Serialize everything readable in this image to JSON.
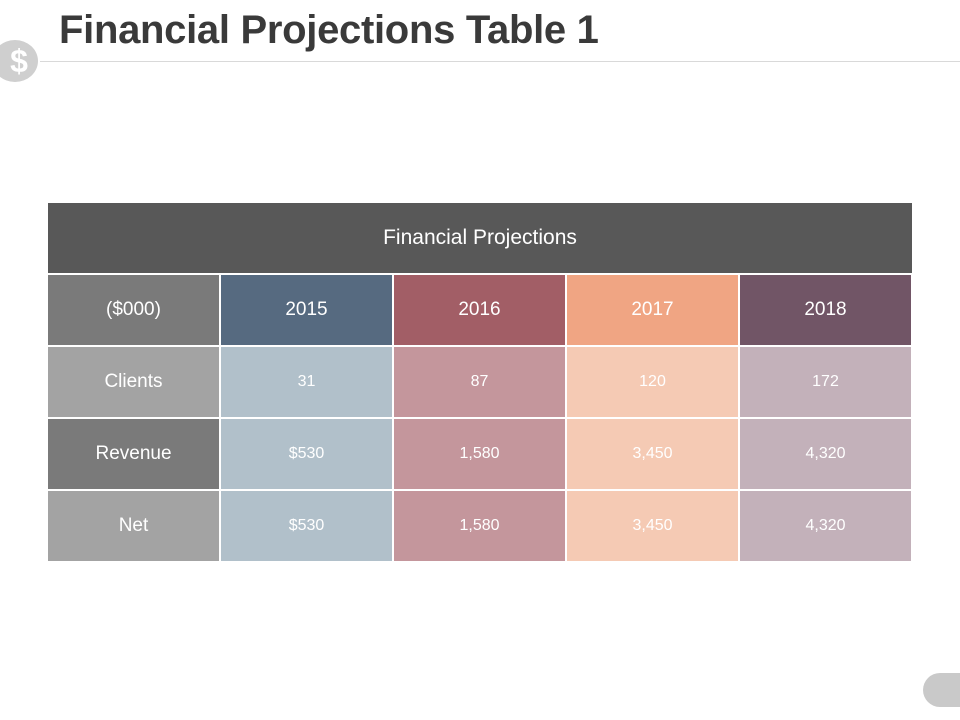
{
  "slide": {
    "title": "Financial Projections Table 1",
    "dollar_glyph": "$"
  },
  "table": {
    "header": "Financial Projections",
    "unit_label": "($000)",
    "years": [
      "2015",
      "2016",
      "2017",
      "2018"
    ],
    "rows": [
      {
        "label": "Clients",
        "values": [
          "31",
          "87",
          "120",
          "172"
        ]
      },
      {
        "label": "Revenue",
        "values": [
          "$530",
          "1,580",
          "3,450",
          "4,320"
        ]
      },
      {
        "label": "Net",
        "values": [
          "$530",
          "1,580",
          "3,450",
          "4,320"
        ]
      }
    ]
  },
  "colors": {
    "header_bg": "#585858",
    "unit_bg": "#7a7a7a",
    "label_bg_light": "#a3a3a3",
    "label_bg_dark": "#7a7a7a",
    "year_bg": [
      "#566a80",
      "#a25e66",
      "#f0a583",
      "#715566"
    ],
    "data_bg": [
      "#b1c0ca",
      "#c4969c",
      "#f5cab4",
      "#c3b1ba"
    ]
  }
}
